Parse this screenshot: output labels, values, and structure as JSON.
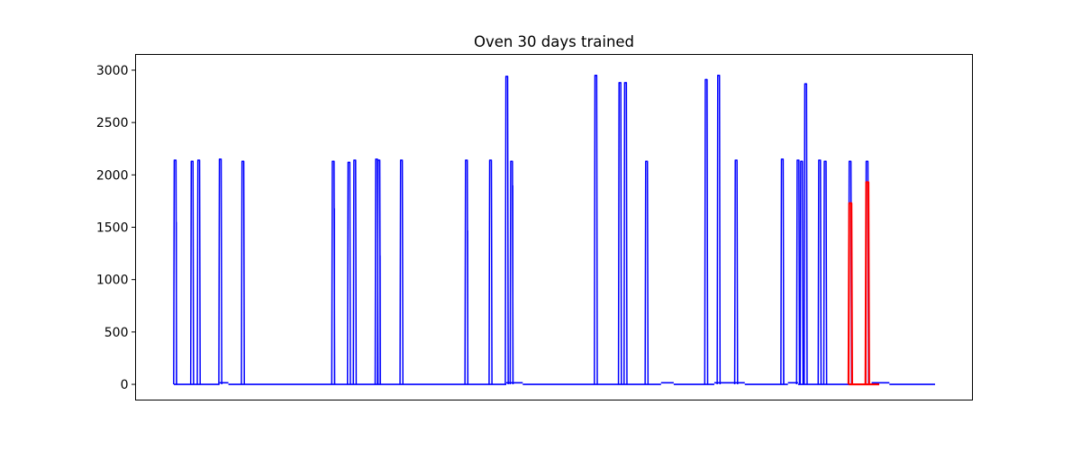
{
  "chart_data": {
    "type": "line",
    "title": "Oven 30 days trained",
    "xlabel": "",
    "ylabel": "",
    "x_range": [
      0,
      30
    ],
    "ylim": [
      -150,
      3150
    ],
    "y_ticks": [
      0,
      500,
      1000,
      1500,
      2000,
      2500,
      3000
    ],
    "x_ticks_visible": false,
    "grid": false,
    "legend": "none",
    "colors": {
      "baseline": "#0000ff",
      "highlight": "#ff0000"
    },
    "series": [
      {
        "color": "#0000ff",
        "baseline_segments": [
          {
            "x": [
              0.0,
              1.8
            ],
            "y": 0
          },
          {
            "x": [
              1.8,
              2.15
            ],
            "y": 15
          },
          {
            "x": [
              2.15,
              13.1
            ],
            "y": 0
          },
          {
            "x": [
              13.1,
              13.75
            ],
            "y": 15
          },
          {
            "x": [
              13.75,
              19.2
            ],
            "y": 0
          },
          {
            "x": [
              19.2,
              19.7
            ],
            "y": 15
          },
          {
            "x": [
              19.7,
              21.3
            ],
            "y": 0
          },
          {
            "x": [
              21.3,
              22.5
            ],
            "y": 15
          },
          {
            "x": [
              22.5,
              24.2
            ],
            "y": 0
          },
          {
            "x": [
              24.2,
              24.6
            ],
            "y": 15
          },
          {
            "x": [
              24.6,
              27.5
            ],
            "y": 0
          },
          {
            "x": [
              27.5,
              28.2
            ],
            "y": 15
          },
          {
            "x": [
              28.2,
              30.0
            ],
            "y": 0
          }
        ],
        "spikes": [
          {
            "x": 0.05,
            "y": 2140,
            "inner": 1550
          },
          {
            "x": 0.72,
            "y": 2130
          },
          {
            "x": 0.98,
            "y": 2140
          },
          {
            "x": 1.83,
            "y": 2150
          },
          {
            "x": 2.72,
            "y": 2130
          },
          {
            "x": 6.28,
            "y": 2130,
            "inner": 1680
          },
          {
            "x": 6.9,
            "y": 2120
          },
          {
            "x": 7.13,
            "y": 2140
          },
          {
            "x": 7.99,
            "y": 2150
          },
          {
            "x": 8.08,
            "y": 2140,
            "inner": 1230
          },
          {
            "x": 8.97,
            "y": 2140
          },
          {
            "x": 11.53,
            "y": 2140,
            "inner": 1470
          },
          {
            "x": 12.48,
            "y": 2140
          },
          {
            "x": 13.12,
            "y": 2940
          },
          {
            "x": 13.31,
            "y": 2130,
            "inner": 1900
          },
          {
            "x": 16.63,
            "y": 2950
          },
          {
            "x": 17.58,
            "y": 2880
          },
          {
            "x": 17.8,
            "y": 2880
          },
          {
            "x": 18.63,
            "y": 2130
          },
          {
            "x": 20.98,
            "y": 2910
          },
          {
            "x": 21.47,
            "y": 2950
          },
          {
            "x": 22.16,
            "y": 2140
          },
          {
            "x": 23.98,
            "y": 2150,
            "inner": 1000
          },
          {
            "x": 24.6,
            "y": 2140
          },
          {
            "x": 24.74,
            "y": 2130
          },
          {
            "x": 24.9,
            "y": 2870
          },
          {
            "x": 25.45,
            "y": 2140
          },
          {
            "x": 25.67,
            "y": 2130
          },
          {
            "x": 26.65,
            "y": 2130
          },
          {
            "x": 27.32,
            "y": 2130
          }
        ]
      },
      {
        "color": "#ff0000",
        "baseline_segments": [
          {
            "x": [
              26.6,
              27.8
            ],
            "y": 0
          }
        ],
        "spikes": [
          {
            "x": 26.66,
            "y": 1730
          },
          {
            "x": 27.33,
            "y": 1930
          }
        ]
      }
    ]
  }
}
